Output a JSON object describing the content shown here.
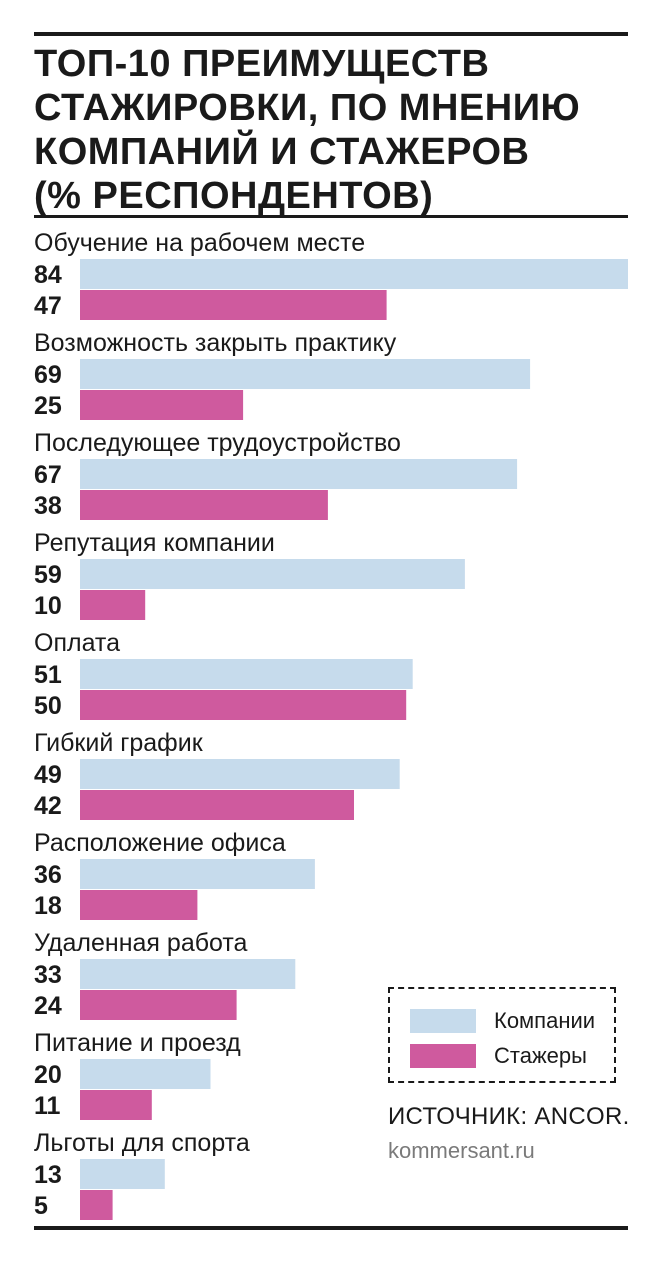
{
  "title_lines": [
    "ТОП-10 ПРЕИМУЩЕСТВ",
    "СТАЖИРОВКИ, ПО МНЕНИЮ",
    "КОМПАНИЙ И СТАЖЕРОВ",
    "(% РЕСПОНДЕНТОВ)"
  ],
  "colors": {
    "companies": "#c6dbec",
    "interns": "#cf5a9e",
    "ink": "#1a1a1a"
  },
  "legend": {
    "companies": "Компании",
    "interns": "Стажеры"
  },
  "source": "ИСТОЧНИК: ANCOR.",
  "site": "kommersant.ru",
  "chart_data": {
    "type": "bar",
    "orientation": "horizontal",
    "categories": [
      "Обучение на рабочем месте",
      "Возможность закрыть практику",
      "Последующее трудоустройство",
      "Репутация компании",
      "Оплата",
      "Гибкий график",
      "Расположение офиса",
      "Удаленная работа",
      "Питание и проезд",
      "Льготы для спорта"
    ],
    "series": [
      {
        "name": "Компании",
        "values": [
          84,
          69,
          67,
          59,
          51,
          49,
          36,
          33,
          20,
          13
        ]
      },
      {
        "name": "Стажеры",
        "values": [
          47,
          25,
          38,
          10,
          50,
          42,
          18,
          24,
          11,
          5
        ]
      }
    ],
    "xlim": [
      0,
      84
    ],
    "grid": false,
    "legend_position": "bottom-right"
  }
}
